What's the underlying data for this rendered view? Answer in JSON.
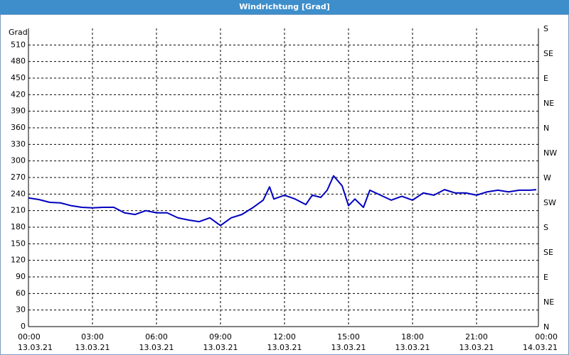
{
  "chart_data": {
    "type": "line",
    "title": "Windrichtung [Grad]",
    "y_label": "Grad",
    "xlim": [
      0,
      24
    ],
    "xticks": [
      {
        "value": 0,
        "label": "00:00"
      },
      {
        "value": 3,
        "label": "03:00"
      },
      {
        "value": 6,
        "label": "06:00"
      },
      {
        "value": 9,
        "label": "09:00"
      },
      {
        "value": 12,
        "label": "12:00"
      },
      {
        "value": 15,
        "label": "15:00"
      },
      {
        "value": 18,
        "label": "18:00"
      },
      {
        "value": 21,
        "label": "21:00"
      },
      {
        "value": 24,
        "label": "00:00"
      }
    ],
    "xtick_dates": [
      "13.03.21",
      "13.03.21",
      "13.03.21",
      "13.03.21",
      "13.03.21",
      "13.03.21",
      "13.03.21",
      "13.03.21",
      "14.03.21"
    ],
    "ylim": [
      0,
      540
    ],
    "yticks": [
      0,
      30,
      60,
      90,
      120,
      150,
      180,
      210,
      240,
      270,
      300,
      330,
      360,
      390,
      420,
      450,
      480,
      510
    ],
    "y2lim": [
      0,
      540
    ],
    "y2ticks": [
      {
        "value": 0,
        "label": "N"
      },
      {
        "value": 45,
        "label": "NE"
      },
      {
        "value": 90,
        "label": "E"
      },
      {
        "value": 135,
        "label": "SE"
      },
      {
        "value": 180,
        "label": "S"
      },
      {
        "value": 225,
        "label": "SW"
      },
      {
        "value": 270,
        "label": "W"
      },
      {
        "value": 315,
        "label": "NW"
      },
      {
        "value": 360,
        "label": "N"
      },
      {
        "value": 405,
        "label": "NE"
      },
      {
        "value": 450,
        "label": "E"
      },
      {
        "value": 495,
        "label": "SE"
      },
      {
        "value": 540,
        "label": "S"
      }
    ],
    "grid": true,
    "x": [
      0,
      0.5,
      1,
      1.5,
      2,
      2.5,
      3,
      3.5,
      4,
      4.5,
      5,
      5.5,
      6,
      6.5,
      7,
      7.5,
      8,
      8.5,
      9,
      9.5,
      10,
      10.5,
      11,
      11.3,
      11.5,
      12,
      12.5,
      13,
      13.3,
      13.7,
      14,
      14.3,
      14.7,
      15,
      15.3,
      15.7,
      16,
      16.5,
      17,
      17.5,
      18,
      18.5,
      19,
      19.5,
      20,
      20.5,
      21,
      21.5,
      22,
      22.5,
      23,
      23.5,
      23.8
    ],
    "series": [
      {
        "name": "Windrichtung",
        "color": "#0000c0",
        "values": [
          233,
          230,
          225,
          224,
          219,
          216,
          215,
          216,
          216,
          206,
          203,
          210,
          206,
          206,
          197,
          193,
          190,
          197,
          183,
          197,
          203,
          215,
          229,
          253,
          231,
          238,
          231,
          221,
          238,
          234,
          247,
          273,
          255,
          219,
          231,
          216,
          247,
          238,
          229,
          236,
          229,
          242,
          238,
          248,
          242,
          242,
          238,
          244,
          247,
          244,
          247,
          247,
          248
        ]
      }
    ]
  }
}
